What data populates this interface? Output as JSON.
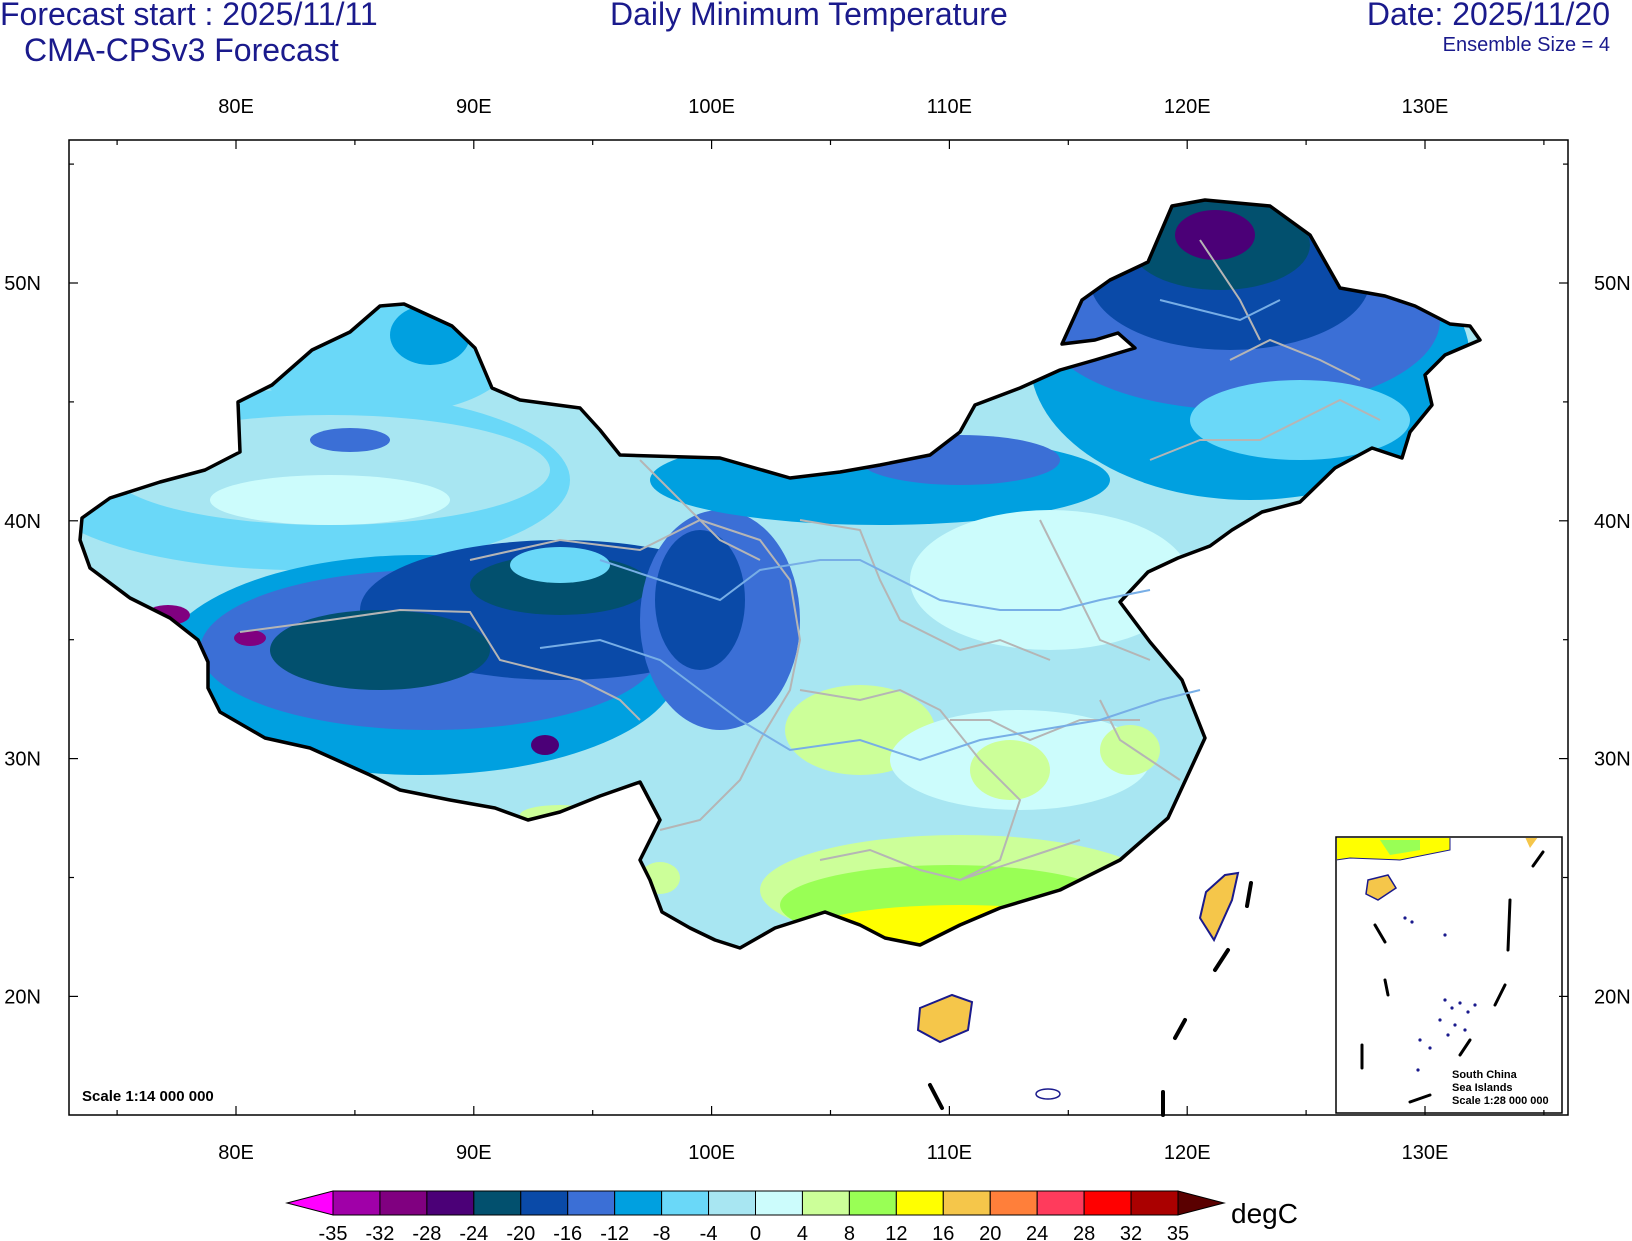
{
  "header": {
    "forecast_start": "Forecast start : 2025/11/11",
    "model": "CMA-CPSv3 Forecast",
    "title": "Daily Minimum Temperature",
    "date": "Date: 2025/11/20",
    "ensemble": "Ensemble Size = 4"
  },
  "axes": {
    "lon_ticks": [
      "80E",
      "90E",
      "100E",
      "110E",
      "120E",
      "130E"
    ],
    "lat_ticks": [
      "50N",
      "40N",
      "30N",
      "20N"
    ],
    "lon_range": [
      73,
      136
    ],
    "lat_range": [
      15,
      56
    ]
  },
  "map": {
    "scale_main": "Scale 1:14 000 000",
    "inset_title_1": "South China",
    "inset_title_2": "Sea Islands",
    "inset_scale": "Scale 1:28 000 000"
  },
  "colorbar": {
    "unit": "degC",
    "ticks": [
      "-35",
      "-32",
      "-28",
      "-24",
      "-20",
      "-16",
      "-12",
      "-8",
      "-4",
      "0",
      "4",
      "8",
      "12",
      "16",
      "20",
      "24",
      "28",
      "32",
      "35"
    ],
    "colors": [
      "#ff00ff",
      "#a000a8",
      "#800080",
      "#4b0077",
      "#02506e",
      "#0a4aa8",
      "#3b6fd6",
      "#00a0e0",
      "#6ad8f8",
      "#a8e6f2",
      "#ccfcfc",
      "#ccff99",
      "#99ff55",
      "#ffff00",
      "#f5c64a",
      "#ff7f3a",
      "#ff3b5c",
      "#ff0000",
      "#aa0000",
      "#5a0000"
    ]
  }
}
